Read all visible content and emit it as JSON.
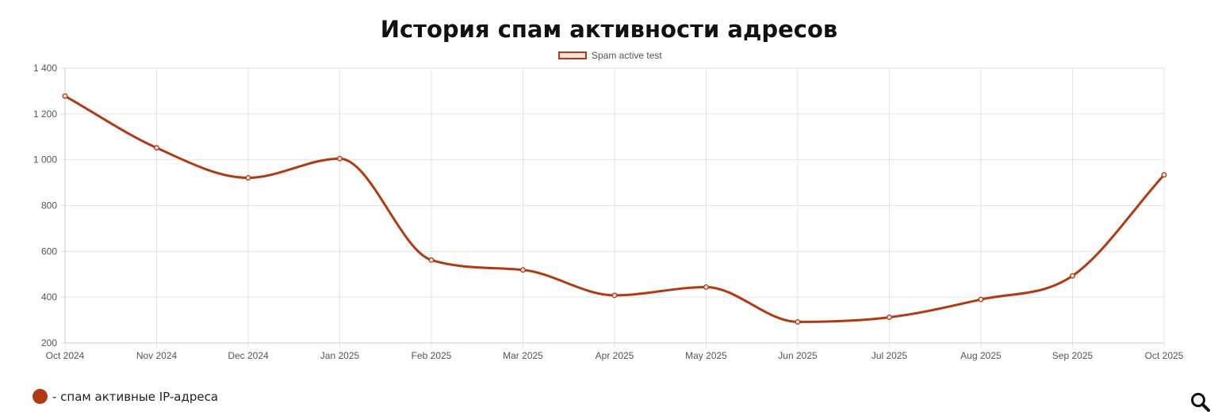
{
  "chart_data": {
    "type": "line",
    "title": "История спам активности адресов",
    "categories": [
      "Oct 2024",
      "Nov 2024",
      "Dec 2024",
      "Jan 2025",
      "Feb 2025",
      "Mar 2025",
      "Apr 2025",
      "May 2025",
      "Jun 2025",
      "Jul 2025",
      "Aug 2025",
      "Sep 2025",
      "Oct 2025"
    ],
    "series": [
      {
        "name": "Spam active test",
        "values": [
          1278,
          1052,
          921,
          1005,
          562,
          519,
          408,
          444,
          292,
          312,
          390,
          493,
          934
        ],
        "color": "#b03a14"
      }
    ],
    "ylim": [
      200,
      1400
    ],
    "yticks": [
      200,
      400,
      600,
      800,
      1000,
      1200,
      1400
    ],
    "ytick_labels": [
      "200",
      "400",
      "600",
      "800",
      "1 000",
      "1 200",
      "1 400"
    ],
    "xlabel": "",
    "ylabel": "",
    "grid": true,
    "legend_position": "top-center",
    "smooth": true
  },
  "footer": {
    "legend_text": "- спам активные IP-адреса",
    "dot_color": "#b03a14"
  },
  "icons": {
    "zoom": "search-icon"
  }
}
